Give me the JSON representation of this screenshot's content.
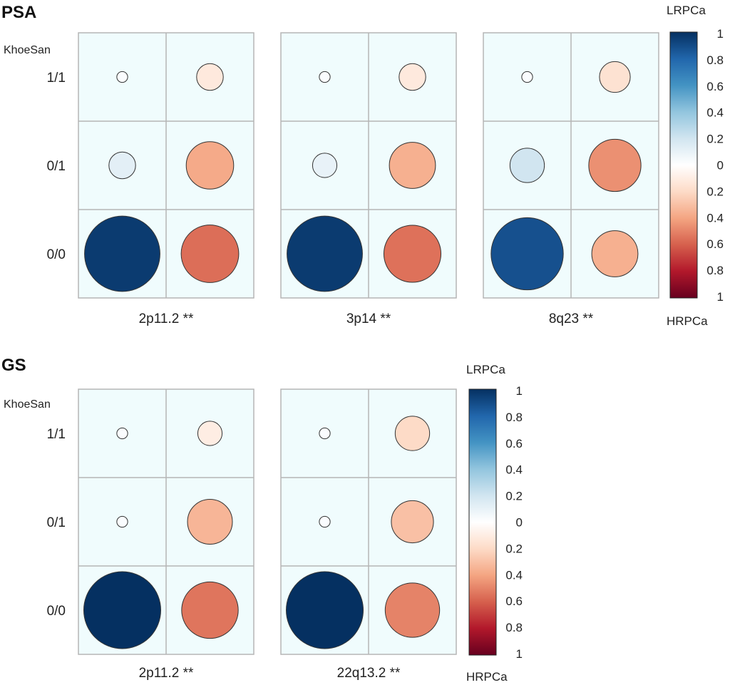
{
  "chart_data": [
    {
      "type": "correlation-circles",
      "title": "PSA",
      "ylabel": "KhoeSan",
      "rows": [
        "1/1",
        "0/1",
        "0/0"
      ],
      "colorbar": {
        "top_label": "LRPCa",
        "bottom_label": "HRPCa",
        "ticks": [
          "1",
          "0.8",
          "0.6",
          "0.4",
          "0.2",
          "0",
          "0.2",
          "0.4",
          "0.6",
          "0.8",
          "1"
        ]
      },
      "panels": [
        {
          "label": "2p11.2 **",
          "values": [
            [
              0.02,
              -0.12
            ],
            [
              0.12,
              -0.38
            ],
            [
              0.96,
              -0.56
            ]
          ]
        },
        {
          "label": "3p14 **",
          "values": [
            [
              0.02,
              -0.12
            ],
            [
              0.1,
              -0.36
            ],
            [
              0.96,
              -0.55
            ]
          ]
        },
        {
          "label": "8q23 **",
          "values": [
            [
              0.02,
              -0.16
            ],
            [
              0.2,
              -0.46
            ],
            [
              0.88,
              -0.36
            ]
          ]
        }
      ]
    },
    {
      "type": "correlation-circles",
      "title": "GS",
      "ylabel": "KhoeSan",
      "rows": [
        "1/1",
        "0/1",
        "0/0"
      ],
      "colorbar": {
        "top_label": "LRPCa",
        "bottom_label": "HRPCa",
        "ticks": [
          "1",
          "0.8",
          "0.6",
          "0.4",
          "0.2",
          "0",
          "0.2",
          "0.4",
          "0.6",
          "0.8",
          "1"
        ]
      },
      "panels": [
        {
          "label": "2p11.2 **",
          "values": [
            [
              0.02,
              -0.1
            ],
            [
              0.02,
              -0.34
            ],
            [
              1.0,
              -0.54
            ]
          ]
        },
        {
          "label": "22q13.2 **",
          "values": [
            [
              0.02,
              -0.2
            ],
            [
              0.02,
              -0.3
            ],
            [
              1.0,
              -0.5
            ]
          ]
        }
      ]
    }
  ]
}
